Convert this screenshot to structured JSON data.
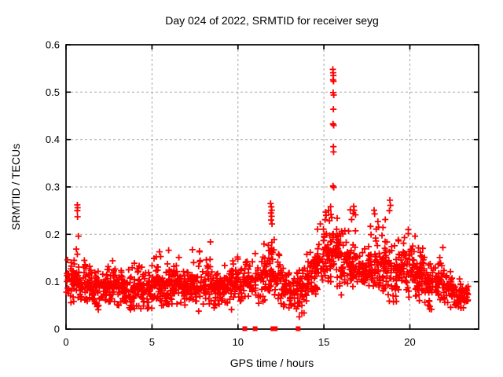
{
  "window": {
    "background": "#ffffff"
  },
  "chart_data": {
    "type": "scatter",
    "title": "Day 024 of 2022, SRMTID for receiver seyg",
    "xlabel": "GPS time / hours",
    "ylabel": "SRMTID / TECUs",
    "xlim": [
      0,
      24
    ],
    "ylim": [
      0,
      0.6
    ],
    "xticks": [
      0,
      5,
      10,
      15,
      20
    ],
    "yticks": [
      0,
      0.1,
      0.2,
      0.3,
      0.4,
      0.5,
      0.6
    ],
    "grid": true,
    "grid_style": {
      "color": "#a8a8a8",
      "dash": "3,3"
    },
    "axis_color": "#000000",
    "legend": null,
    "marker": {
      "shape": "plus",
      "color": "#ff0000",
      "size": 8,
      "stroke_width": 1.8
    },
    "series": [
      {
        "name": "SRMTID",
        "band_segments_format": [
          "x_start_hours",
          "x_end_hours",
          "point_count",
          "y_min",
          "y_typical",
          "y_max"
        ],
        "band_segments": [
          [
            0.0,
            0.5,
            40,
            0.055,
            0.09,
            0.155
          ],
          [
            0.5,
            1.0,
            40,
            0.06,
            0.095,
            0.175
          ],
          [
            1.0,
            1.5,
            40,
            0.05,
            0.09,
            0.15
          ],
          [
            1.5,
            2.0,
            38,
            0.04,
            0.08,
            0.13
          ],
          [
            2.0,
            2.5,
            40,
            0.05,
            0.085,
            0.14
          ],
          [
            2.5,
            3.0,
            40,
            0.045,
            0.09,
            0.165
          ],
          [
            3.0,
            3.5,
            40,
            0.05,
            0.085,
            0.155
          ],
          [
            3.5,
            4.0,
            38,
            0.04,
            0.08,
            0.14
          ],
          [
            4.0,
            4.5,
            40,
            0.045,
            0.085,
            0.15
          ],
          [
            4.5,
            5.0,
            38,
            0.03,
            0.08,
            0.14
          ],
          [
            5.0,
            5.5,
            40,
            0.05,
            0.09,
            0.175
          ],
          [
            5.5,
            6.0,
            40,
            0.04,
            0.085,
            0.17
          ],
          [
            6.0,
            6.5,
            40,
            0.05,
            0.09,
            0.155
          ],
          [
            6.5,
            7.0,
            40,
            0.045,
            0.085,
            0.16
          ],
          [
            7.0,
            7.5,
            40,
            0.05,
            0.09,
            0.18
          ],
          [
            7.5,
            8.0,
            40,
            0.04,
            0.085,
            0.17
          ],
          [
            8.0,
            8.5,
            40,
            0.045,
            0.09,
            0.185
          ],
          [
            8.5,
            9.0,
            38,
            0.035,
            0.08,
            0.15
          ],
          [
            9.0,
            9.5,
            40,
            0.05,
            0.085,
            0.155
          ],
          [
            9.5,
            10.0,
            40,
            0.045,
            0.09,
            0.16
          ],
          [
            10.0,
            10.5,
            34,
            0.05,
            0.095,
            0.15
          ],
          [
            10.5,
            11.0,
            30,
            0.06,
            0.1,
            0.15
          ],
          [
            11.0,
            11.5,
            34,
            0.05,
            0.1,
            0.16
          ],
          [
            11.5,
            12.0,
            40,
            0.06,
            0.12,
            0.26
          ],
          [
            12.0,
            12.5,
            38,
            0.05,
            0.11,
            0.215
          ],
          [
            12.5,
            13.0,
            36,
            0.035,
            0.08,
            0.13
          ],
          [
            13.0,
            13.5,
            36,
            0.03,
            0.075,
            0.13
          ],
          [
            13.5,
            14.0,
            38,
            0.02,
            0.08,
            0.15
          ],
          [
            14.0,
            14.5,
            40,
            0.06,
            0.11,
            0.19
          ],
          [
            14.5,
            15.0,
            40,
            0.07,
            0.13,
            0.22
          ],
          [
            15.0,
            15.5,
            44,
            0.08,
            0.15,
            0.275
          ],
          [
            15.5,
            16.0,
            44,
            0.09,
            0.155,
            0.255
          ],
          [
            16.0,
            16.5,
            40,
            0.07,
            0.13,
            0.22
          ],
          [
            16.5,
            17.0,
            40,
            0.08,
            0.13,
            0.255
          ],
          [
            17.0,
            17.5,
            40,
            0.09,
            0.13,
            0.18
          ],
          [
            17.5,
            18.0,
            40,
            0.06,
            0.12,
            0.245
          ],
          [
            18.0,
            18.5,
            40,
            0.07,
            0.12,
            0.235
          ],
          [
            18.5,
            19.0,
            40,
            0.06,
            0.13,
            0.27
          ],
          [
            19.0,
            19.5,
            40,
            0.05,
            0.11,
            0.19
          ],
          [
            19.5,
            20.0,
            40,
            0.06,
            0.12,
            0.21
          ],
          [
            20.0,
            20.5,
            40,
            0.06,
            0.12,
            0.2
          ],
          [
            20.5,
            21.0,
            40,
            0.05,
            0.1,
            0.18
          ],
          [
            21.0,
            21.5,
            38,
            0.04,
            0.09,
            0.14
          ],
          [
            21.5,
            22.0,
            40,
            0.05,
            0.1,
            0.175
          ],
          [
            22.0,
            22.5,
            38,
            0.04,
            0.08,
            0.13
          ],
          [
            22.5,
            23.0,
            36,
            0.035,
            0.07,
            0.11
          ],
          [
            23.0,
            23.4,
            24,
            0.04,
            0.065,
            0.1
          ]
        ],
        "peak_points": [
          [
            0.66,
            0.262
          ],
          [
            0.67,
            0.256
          ],
          [
            0.66,
            0.25
          ],
          [
            0.67,
            0.237
          ],
          [
            0.72,
            0.196
          ],
          [
            11.9,
            0.265
          ],
          [
            11.94,
            0.258
          ],
          [
            11.97,
            0.251
          ],
          [
            11.92,
            0.245
          ],
          [
            11.96,
            0.238
          ],
          [
            11.93,
            0.23
          ],
          [
            11.98,
            0.222
          ],
          [
            14.79,
            0.222
          ],
          [
            15.1,
            0.247
          ],
          [
            15.13,
            0.24
          ],
          [
            15.52,
            0.548
          ],
          [
            15.54,
            0.541
          ],
          [
            15.55,
            0.535
          ],
          [
            15.53,
            0.526
          ],
          [
            15.56,
            0.523
          ],
          [
            15.54,
            0.499
          ],
          [
            15.57,
            0.494
          ],
          [
            15.55,
            0.464
          ],
          [
            15.53,
            0.433
          ],
          [
            15.57,
            0.43
          ],
          [
            15.55,
            0.385
          ],
          [
            15.56,
            0.374
          ],
          [
            15.53,
            0.302
          ],
          [
            15.57,
            0.299
          ],
          [
            16.73,
            0.259
          ],
          [
            16.76,
            0.251
          ],
          [
            16.7,
            0.244
          ],
          [
            17.92,
            0.251
          ],
          [
            17.95,
            0.243
          ],
          [
            18.84,
            0.272
          ],
          [
            18.87,
            0.261
          ],
          [
            18.81,
            0.25
          ],
          [
            19.91,
            0.21
          ],
          [
            20.3,
            0.196
          ],
          [
            21.92,
            0.172
          ]
        ]
      }
    ],
    "zero_flags": {
      "shape": "filled-square",
      "color": "#ff0000",
      "size": 6,
      "y": 0,
      "x": [
        10.4,
        11.0,
        12.03,
        12.17,
        13.5
      ]
    }
  }
}
